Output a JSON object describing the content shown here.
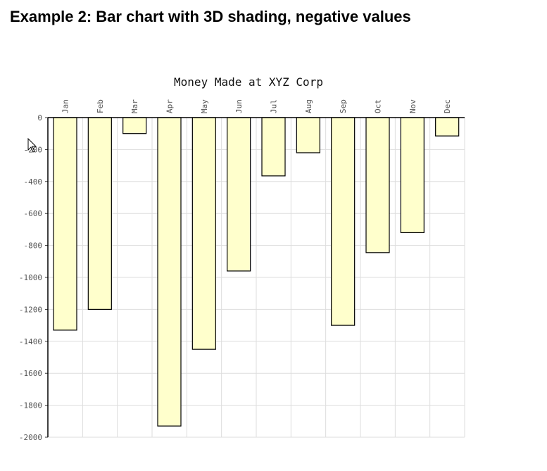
{
  "page": {
    "heading": "Example 2: Bar chart with 3D shading, negative values"
  },
  "chart_data": {
    "type": "bar",
    "title": "Money Made at XYZ Corp",
    "xlabel": "",
    "ylabel": "",
    "categories": [
      "Jan",
      "Feb",
      "Mar",
      "Apr",
      "May",
      "Jun",
      "Jul",
      "Aug",
      "Sep",
      "Oct",
      "Nov",
      "Dec"
    ],
    "values": [
      -1330,
      -1200,
      -100,
      -1930,
      -1450,
      -960,
      -365,
      -220,
      -1300,
      -845,
      -720,
      -115
    ],
    "ylim": [
      -2000,
      0
    ],
    "yticks": [
      "0",
      "-200",
      "-400",
      "-600",
      "-800",
      "-1000",
      "-1200",
      "-1400",
      "-1600",
      "-1800",
      "-2000"
    ],
    "x_axis_position": "top",
    "grid": true,
    "colors": {
      "bar_fill": "#ffffcc",
      "bar_stroke": "#000000",
      "grid": "#dddddd",
      "axis": "#000000"
    }
  },
  "cursor": {
    "icon": "mouse-pointer-icon"
  }
}
